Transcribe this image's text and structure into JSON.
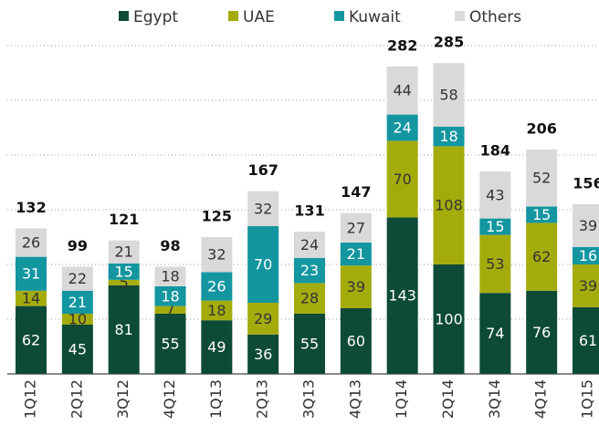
{
  "chart_data": {
    "type": "stacked_bar",
    "categories": [
      "1Q12",
      "2Q12",
      "3Q12",
      "4Q12",
      "1Q13",
      "2Q13",
      "3Q13",
      "4Q13",
      "1Q14",
      "2Q14",
      "3Q14",
      "4Q14",
      "1Q15"
    ],
    "series": [
      {
        "name": "Egypt",
        "color": "#0d4a37",
        "values": [
          62,
          45,
          81,
          55,
          49,
          36,
          55,
          60,
          143,
          100,
          74,
          76,
          61
        ]
      },
      {
        "name": "UAE",
        "color": "#a4ac0c",
        "values": [
          14,
          10,
          5,
          7,
          18,
          29,
          28,
          39,
          70,
          108,
          53,
          62,
          39
        ]
      },
      {
        "name": "Kuwait",
        "color": "#1396a0",
        "values": [
          31,
          21,
          15,
          18,
          26,
          70,
          23,
          21,
          24,
          18,
          15,
          15,
          16
        ]
      },
      {
        "name": "Others",
        "color": "#d9d9d9",
        "values": [
          26,
          22,
          21,
          18,
          32,
          32,
          24,
          27,
          44,
          58,
          43,
          52,
          39
        ]
      }
    ],
    "totals": [
      132,
      99,
      121,
      98,
      125,
      167,
      131,
      147,
      282,
      285,
      184,
      206,
      156
    ],
    "ylim": [
      0,
      300
    ],
    "yticks": [
      50,
      100,
      150,
      200,
      250,
      300
    ],
    "grid": true,
    "legend": "top"
  }
}
